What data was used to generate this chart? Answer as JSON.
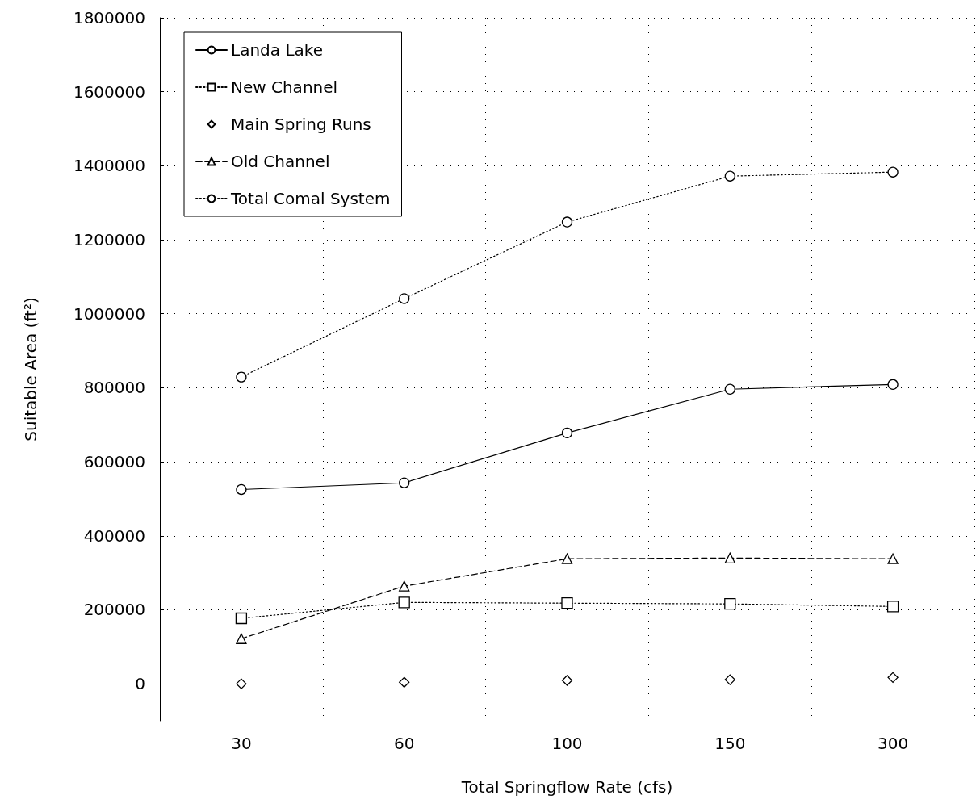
{
  "chart_data": {
    "type": "line",
    "xlabel": "Total Springflow Rate (cfs)",
    "ylabel": "Suitable Area (ft²)",
    "categories": [
      "30",
      "60",
      "100",
      "150",
      "300"
    ],
    "series": [
      {
        "name": "Landa Lake",
        "color": "#000000",
        "marker": "circle",
        "line_style": "solid",
        "values": [
          525000,
          543000,
          678000,
          796000,
          809000
        ]
      },
      {
        "name": "New Channel",
        "color": "#000000",
        "marker": "square",
        "line_style": "dotted",
        "values": [
          177000,
          220000,
          218000,
          216000,
          209000
        ]
      },
      {
        "name": "Main Spring Runs",
        "type": "scatter",
        "color": "#000000",
        "marker": "diamond",
        "values": [
          0,
          4000,
          9000,
          11000,
          17000
        ]
      },
      {
        "name": "Old Channel",
        "color": "#000000",
        "marker": "triangle",
        "line_style": "dashed",
        "values": [
          122000,
          264000,
          338000,
          340000,
          338000
        ]
      },
      {
        "name": "Total Comal System",
        "color": "#000000",
        "marker": "circle",
        "line_style": "dotted",
        "values": [
          829000,
          1041000,
          1248000,
          1372000,
          1383000
        ]
      }
    ],
    "ylim": [
      -100000,
      1800000
    ],
    "yticks": [
      0,
      200000,
      400000,
      600000,
      800000,
      1000000,
      1200000,
      1400000,
      1600000,
      1800000
    ],
    "grid": true,
    "legend": "top left"
  }
}
